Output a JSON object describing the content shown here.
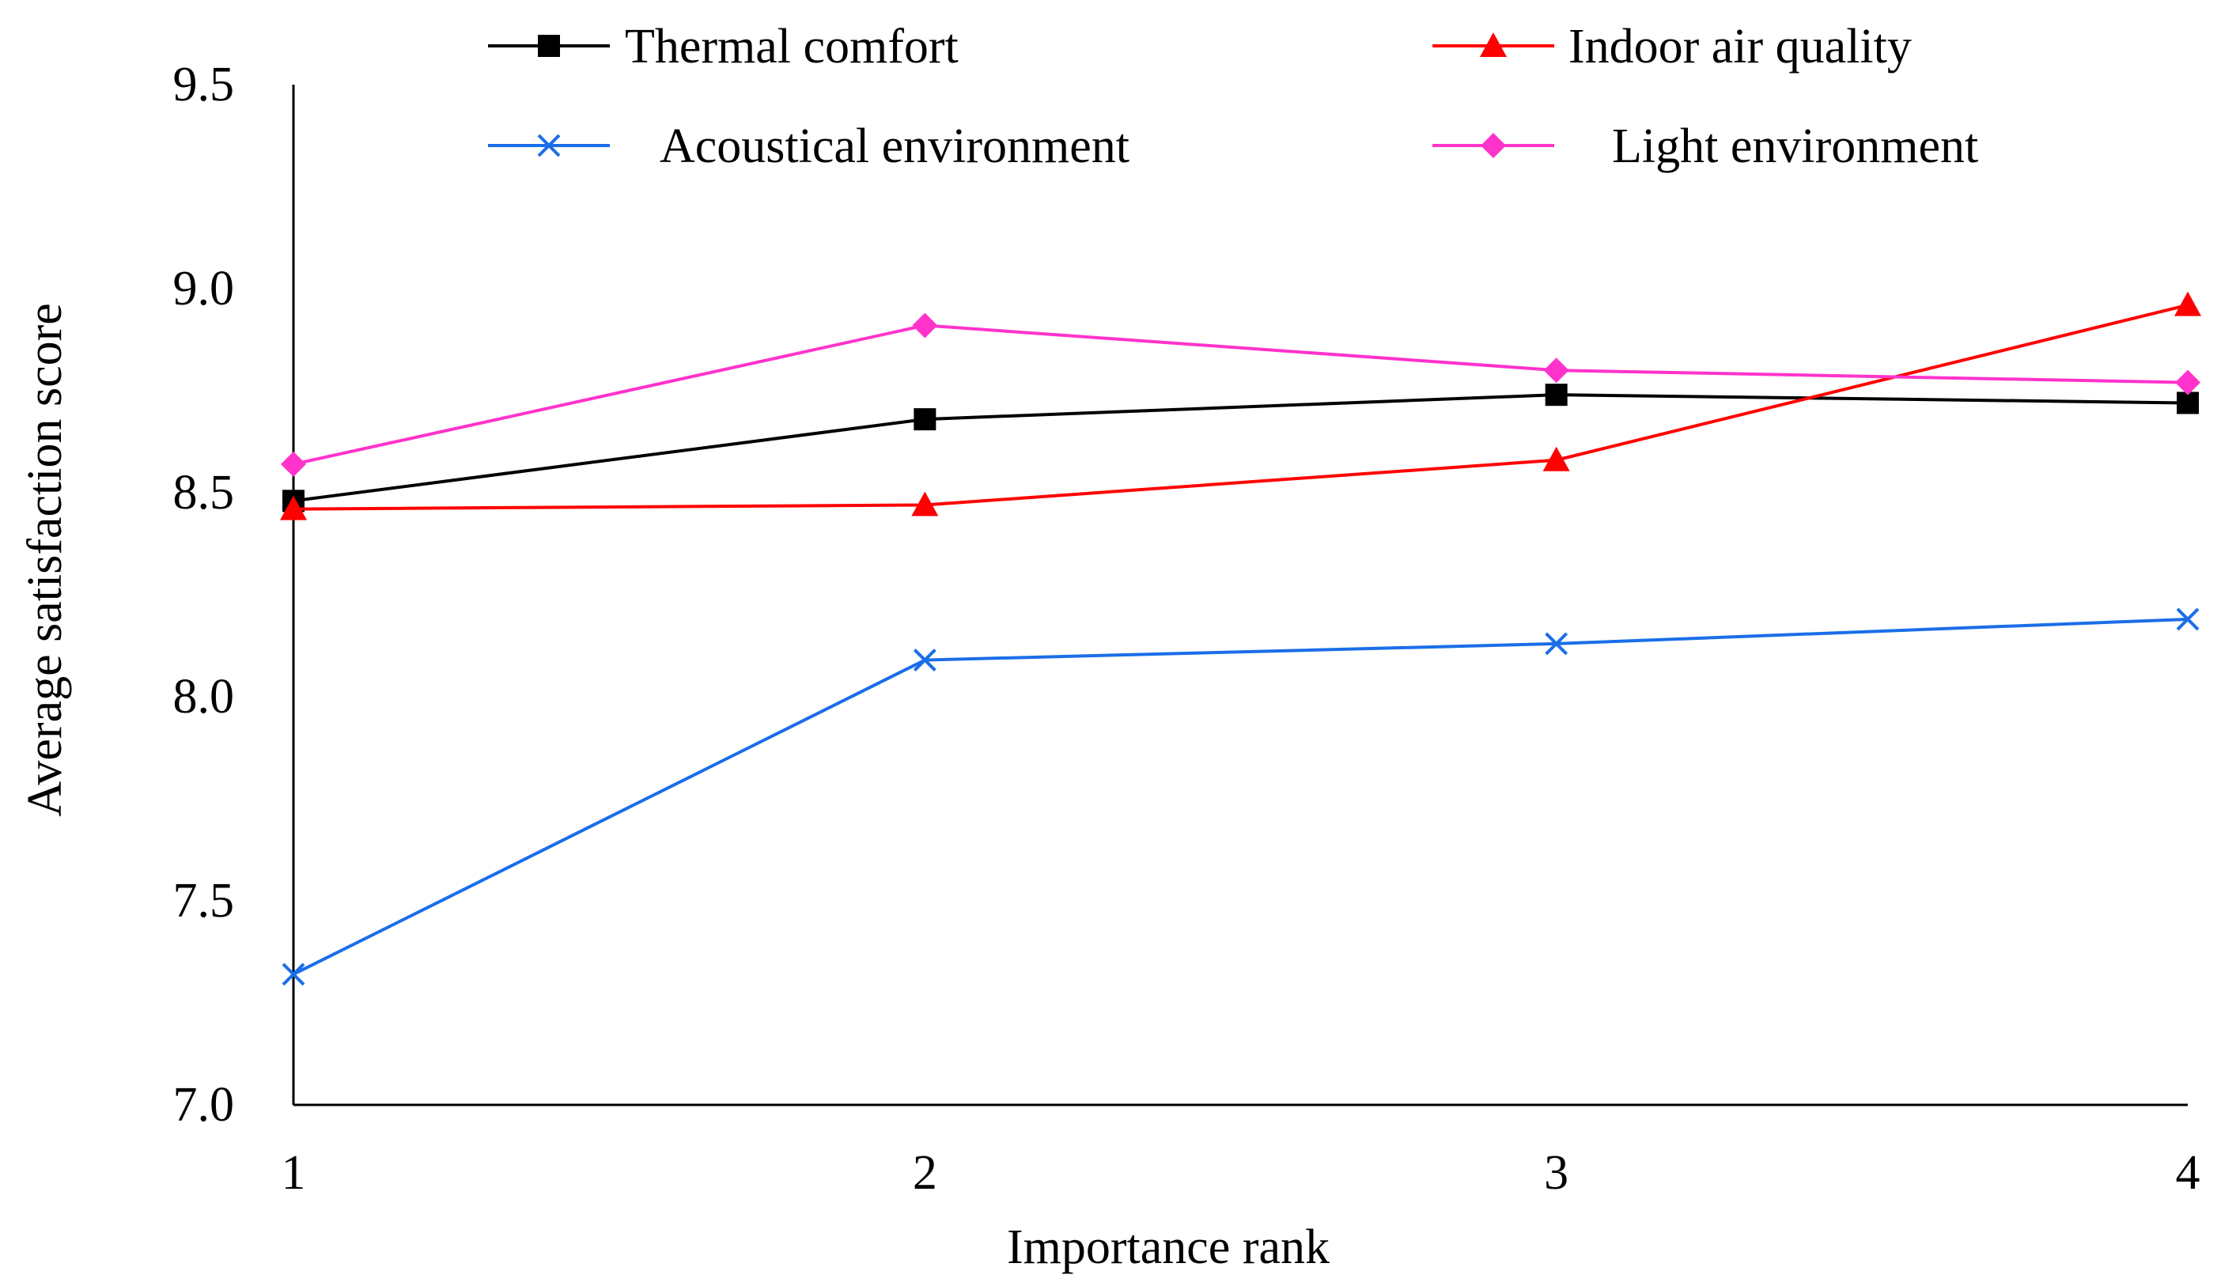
{
  "chart_data": {
    "type": "line",
    "title": "",
    "xlabel": "Importance rank",
    "ylabel": "Average satisfaction score",
    "x": [
      1,
      2,
      3,
      4
    ],
    "x_tick_labels": [
      "1",
      "2",
      "3",
      "4"
    ],
    "ylim": [
      7.0,
      9.5
    ],
    "y_ticks": [
      7.0,
      7.5,
      8.0,
      8.5,
      9.0,
      9.5
    ],
    "y_tick_labels": [
      "7.0",
      "7.5",
      "8.0",
      "8.5",
      "9.0",
      "9.5"
    ],
    "grid": false,
    "legend_position": "top",
    "series": [
      {
        "name": "Thermal comfort",
        "color": "#000000",
        "marker": "square",
        "values": [
          8.48,
          8.68,
          8.74,
          8.72
        ]
      },
      {
        "name": "Indoor air quality",
        "color": "#ff0000",
        "marker": "triangle",
        "values": [
          8.46,
          8.47,
          8.58,
          8.96
        ]
      },
      {
        "name": "Acoustical environment",
        "color": "#1a6ee8",
        "marker": "x",
        "values": [
          7.32,
          8.09,
          8.13,
          8.19
        ]
      },
      {
        "name": "Light environment",
        "color": "#ff33cc",
        "marker": "diamond",
        "values": [
          8.57,
          8.91,
          8.8,
          8.77
        ]
      }
    ]
  }
}
